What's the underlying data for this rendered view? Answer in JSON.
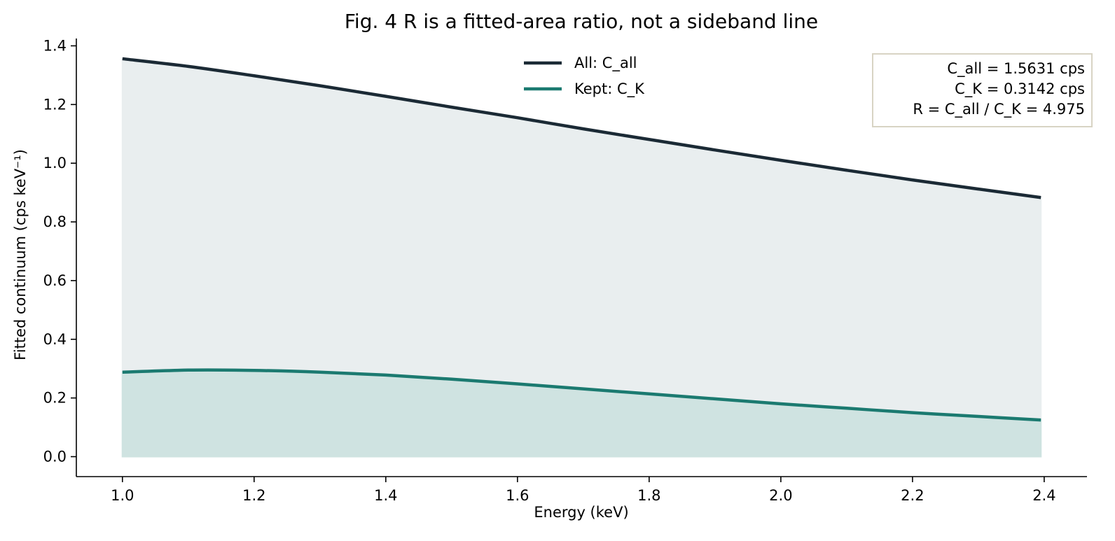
{
  "chart_data": {
    "type": "area",
    "title": "Fig. 4  R is a fitted-area ratio, not a sideband line",
    "xlabel": "Energy (keV)",
    "ylabel": "Fitted continuum (cps keV⁻¹)",
    "xlim": [
      0.93,
      2.465
    ],
    "ylim": [
      -0.068,
      1.425
    ],
    "xticks": [
      "1.0",
      "1.2",
      "1.4",
      "1.6",
      "1.8",
      "2.0",
      "2.2",
      "2.4"
    ],
    "yticks": [
      "0.0",
      "0.2",
      "0.4",
      "0.6",
      "0.8",
      "1.0",
      "1.2",
      "1.4"
    ],
    "grid": false,
    "legend_position": "top-center",
    "x": [
      1.0,
      1.1,
      1.2,
      1.3,
      1.4,
      1.5,
      1.6,
      1.7,
      1.8,
      1.9,
      2.0,
      2.1,
      2.2,
      2.3,
      2.395
    ],
    "series": [
      {
        "name": "All: C_all",
        "color": "#1b2a35",
        "fill": "#e9eeef",
        "values": [
          1.356,
          1.33,
          1.298,
          1.264,
          1.228,
          1.191,
          1.155,
          1.117,
          1.081,
          1.045,
          1.01,
          0.976,
          0.943,
          0.912,
          0.883
        ]
      },
      {
        "name": "Kept: C_K",
        "color": "#1b7a70",
        "fill": "#cfe3e1",
        "values": [
          0.288,
          0.295,
          0.294,
          0.288,
          0.278,
          0.264,
          0.248,
          0.231,
          0.214,
          0.197,
          0.18,
          0.165,
          0.15,
          0.137,
          0.125
        ]
      }
    ],
    "annotation": {
      "lines": [
        "C_all = 1.5631 cps",
        "C_K = 0.3142 cps",
        "R = C_all / C_K = 4.975"
      ],
      "position": "top-right",
      "border_color": "#d8d4c4"
    }
  }
}
